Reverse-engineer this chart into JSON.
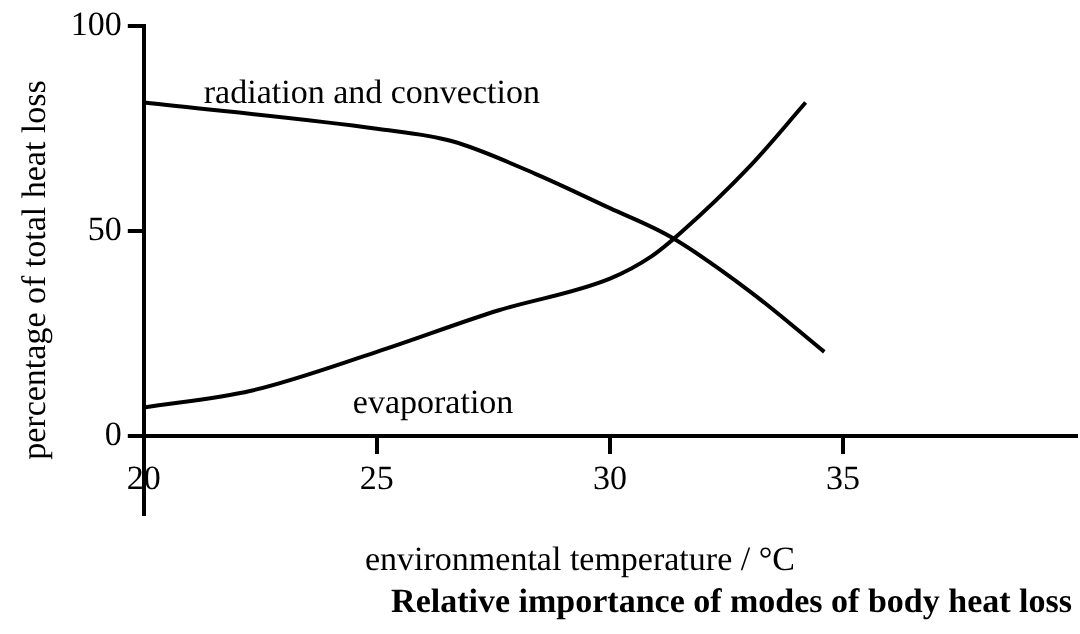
{
  "chart_data": {
    "type": "line",
    "title": "Relative importance of modes of body heat loss",
    "xlabel": "environmental temperature / °C",
    "ylabel": "percentage of total heat loss",
    "xlim": [
      20,
      40
    ],
    "xticks": [
      20,
      25,
      30,
      35
    ],
    "ylim": [
      -19,
      100
    ],
    "yticks": [
      0,
      50,
      100
    ],
    "grid": false,
    "legend": false,
    "marker": "none",
    "line_style": "solid",
    "series": [
      {
        "name": "radiation and convection",
        "color": "#000000",
        "x": [
          20,
          25,
          26.6,
          28.4,
          30,
          31.3,
          33,
          34.6
        ],
        "values": [
          81.4,
          75,
          72,
          64,
          55.6,
          48.6,
          35.3,
          20.5
        ]
      },
      {
        "name": "evaporation",
        "color": "#000000",
        "x": [
          20,
          22.3,
          25,
          27.6,
          30,
          30.9,
          31.5,
          33,
          34.2
        ],
        "values": [
          6.9,
          11,
          20.5,
          30.6,
          38.4,
          43.9,
          49.4,
          65.8,
          81.4
        ]
      }
    ]
  }
}
